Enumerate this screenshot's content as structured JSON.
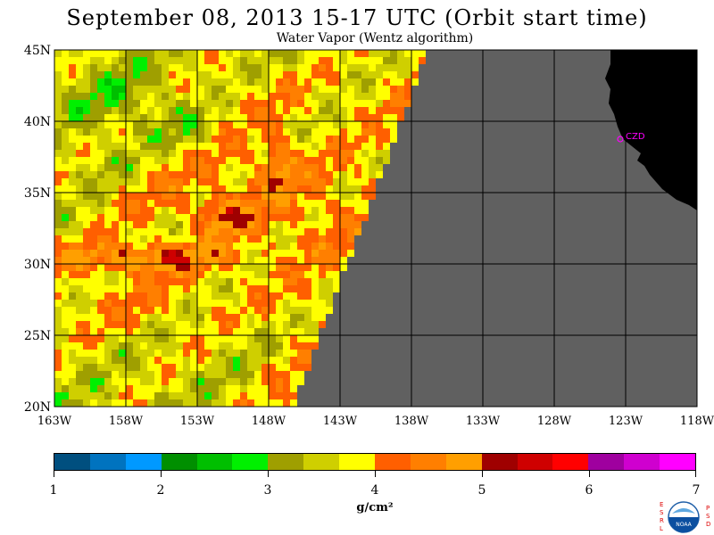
{
  "title": "September 08, 2013  15-17 UTC  (Orbit start time)",
  "subtitle": "Water Vapor (Wentz algorithm)",
  "map": {
    "lat_labels": [
      "45N",
      "40N",
      "35N",
      "30N",
      "25N",
      "20N"
    ],
    "lon_labels": [
      "163W",
      "158W",
      "153W",
      "148W",
      "143W",
      "138W",
      "133W",
      "128W",
      "123W",
      "118W"
    ],
    "station_label": "CZD",
    "colors": {
      "no_data": "#606060",
      "land": "#000000",
      "grid": "#000000",
      "station": "#ff00ff"
    }
  },
  "colorbar": {
    "tick_labels": [
      "1",
      "2",
      "3",
      "4",
      "5",
      "6",
      "7"
    ],
    "units": "g/cm²",
    "colors": [
      "#004f7f",
      "#0073bf",
      "#0099ff",
      "#008f00",
      "#00bf00",
      "#00f000",
      "#9f9f00",
      "#cfcf00",
      "#ffff00",
      "#ff5f00",
      "#ff7f00",
      "#ff9f00",
      "#9f0000",
      "#cf0000",
      "#ff0000",
      "#9f009f",
      "#cf00cf",
      "#ff00ff"
    ]
  },
  "logo": {
    "left_letters": "ESRL",
    "right_letters": "PSD",
    "center_text": "NOAA"
  }
}
